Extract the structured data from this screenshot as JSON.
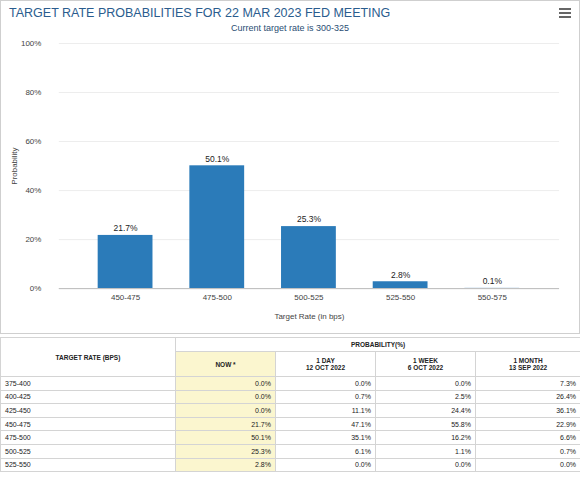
{
  "chart_data": {
    "type": "bar",
    "title": "TARGET RATE PROBABILITIES FOR 22 MAR 2023 FED MEETING",
    "subtitle": "Current target rate is 300-325",
    "x_label": "Target Rate (in bps)",
    "y_label": "Probability",
    "categories": [
      "450-475",
      "475-500",
      "500-525",
      "525-550",
      "550-575"
    ],
    "values": [
      21.7,
      50.1,
      25.3,
      2.8,
      0.1
    ],
    "value_labels": [
      "21.7%",
      "50.1%",
      "25.3%",
      "2.8%",
      "0.1%"
    ],
    "data_labels": true,
    "color": "#2b7bb9",
    "ylim": [
      0,
      100
    ],
    "yticks": [
      {
        "value": 0,
        "label": "0%"
      },
      {
        "value": 20,
        "label": "20%"
      },
      {
        "value": 40,
        "label": "40%"
      },
      {
        "value": 60,
        "label": "60%"
      },
      {
        "value": 80,
        "label": "80%"
      },
      {
        "value": 100,
        "label": "100%"
      }
    ],
    "grid": true
  },
  "table": {
    "header": {
      "rate": "TARGET RATE (BPS)",
      "group": "PROBABILITY(%)",
      "columns": [
        [
          "NOW *"
        ],
        [
          "1 DAY",
          "12 OCT 2022"
        ],
        [
          "1 WEEK",
          "6 OCT 2022"
        ],
        [
          "1 MONTH",
          "13 SEP 2022"
        ]
      ]
    },
    "rows": [
      [
        "375-400",
        "0.0%",
        "0.0%",
        "0.0%",
        "7.3%"
      ],
      [
        "400-425",
        "0.0%",
        "0.7%",
        "2.5%",
        "26.4%"
      ],
      [
        "425-450",
        "0.0%",
        "11.1%",
        "24.4%",
        "36.1%"
      ],
      [
        "450-475",
        "21.7%",
        "47.1%",
        "55.8%",
        "22.9%"
      ],
      [
        "475-500",
        "50.1%",
        "35.1%",
        "16.2%",
        "6.6%"
      ],
      [
        "500-525",
        "25.3%",
        "6.1%",
        "1.1%",
        "0.7%"
      ],
      [
        "525-550",
        "2.8%",
        "0.0%",
        "0.0%",
        "0.0%"
      ]
    ]
  }
}
